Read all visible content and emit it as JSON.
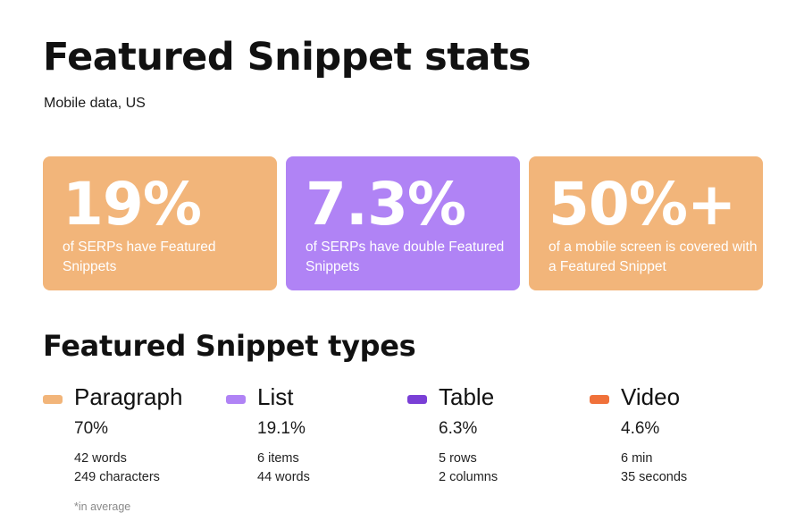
{
  "title": "Featured Snippet stats",
  "subtitle": "Mobile data, US",
  "stats": [
    {
      "value": "19%",
      "text": "of SERPs have Featured Snippets",
      "color": "#F2B57A"
    },
    {
      "value": "7.3%",
      "text": "of SERPs have double Featured Snippets",
      "color": "#B083F5"
    },
    {
      "value": "50%+",
      "text": "of a mobile screen is covered with a Featured Snippet",
      "color": "#F2B57A"
    }
  ],
  "types_title": "Featured Snippet types",
  "types": [
    {
      "name": "Paragraph",
      "percent": "70%",
      "detail_1": "42 words",
      "detail_2": "249 characters",
      "color": "#F2B57A"
    },
    {
      "name": "List",
      "percent": "19.1%",
      "detail_1": "6 items",
      "detail_2": "44 words",
      "color": "#B083F5"
    },
    {
      "name": "Table",
      "percent": "6.3%",
      "detail_1": "5 rows",
      "detail_2": "2 columns",
      "color": "#7A3FD6"
    },
    {
      "name": "Video",
      "percent": "4.6%",
      "detail_1": "6 min",
      "detail_2": "35 seconds",
      "color": "#F0713A"
    }
  ],
  "footnote": "*in average"
}
